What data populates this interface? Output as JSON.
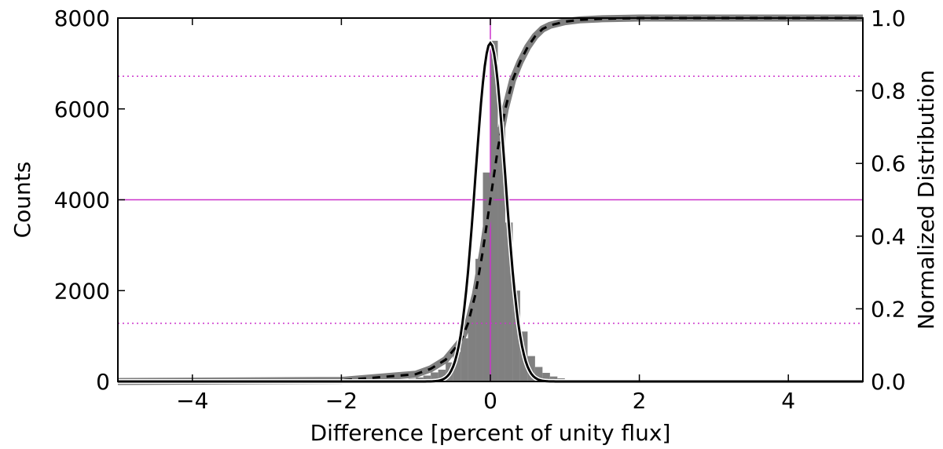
{
  "chart_data": {
    "type": "histogram",
    "xlabel": "Difference [percent of unity flux]",
    "ylabel": "Counts",
    "ylabel_right": "Normalized Distribution",
    "xlim": [
      -5,
      5
    ],
    "ylim": [
      0,
      8000
    ],
    "ylim_right": [
      0,
      1.0
    ],
    "x_ticks": [
      -4,
      -2,
      0,
      2,
      4
    ],
    "x_tick_labels": [
      "−4",
      "−2",
      "0",
      "2",
      "4"
    ],
    "y_ticks": [
      0,
      2000,
      4000,
      6000,
      8000
    ],
    "y_tick_labels": [
      "0",
      "2000",
      "4000",
      "6000",
      "8000"
    ],
    "y_right_ticks": [
      0,
      0.2,
      0.4,
      0.6,
      0.8,
      1.0
    ],
    "y_right_tick_labels": [
      "0.0",
      "0.2",
      "0.4",
      "0.6",
      "0.8",
      "1.0"
    ],
    "grid": false,
    "histogram": {
      "bin_width": 0.1,
      "bins": [
        {
          "x0": -1.2,
          "count": 30
        },
        {
          "x0": -1.1,
          "count": 60
        },
        {
          "x0": -1.0,
          "count": 90
        },
        {
          "x0": -0.9,
          "count": 130
        },
        {
          "x0": -0.8,
          "count": 200
        },
        {
          "x0": -0.7,
          "count": 260
        },
        {
          "x0": -0.6,
          "count": 420
        },
        {
          "x0": -0.5,
          "count": 650
        },
        {
          "x0": -0.4,
          "count": 950
        },
        {
          "x0": -0.3,
          "count": 1600
        },
        {
          "x0": -0.2,
          "count": 2700
        },
        {
          "x0": -0.1,
          "count": 4600
        },
        {
          "x0": 0.0,
          "count": 7500
        },
        {
          "x0": 0.1,
          "count": 5600
        },
        {
          "x0": 0.2,
          "count": 3500
        },
        {
          "x0": 0.3,
          "count": 2000
        },
        {
          "x0": 0.4,
          "count": 1100
        },
        {
          "x0": 0.5,
          "count": 560
        },
        {
          "x0": 0.6,
          "count": 320
        },
        {
          "x0": 0.7,
          "count": 190
        },
        {
          "x0": 0.8,
          "count": 110
        },
        {
          "x0": 0.9,
          "count": 70
        },
        {
          "x0": 1.0,
          "count": 40
        },
        {
          "x0": 1.1,
          "count": 20
        }
      ]
    },
    "gaussian_fit": {
      "amplitude": 7450,
      "mean": 0.0,
      "sigma": 0.2
    },
    "cumulative_distribution": {
      "x": [
        -5.0,
        -2.0,
        -1.0,
        -0.8,
        -0.6,
        -0.4,
        -0.3,
        -0.2,
        -0.1,
        0.0,
        0.1,
        0.2,
        0.3,
        0.4,
        0.5,
        0.6,
        0.7,
        0.8,
        1.0,
        1.2,
        1.5,
        2.0,
        5.0
      ],
      "y": [
        0.0,
        0.003,
        0.02,
        0.035,
        0.06,
        0.11,
        0.16,
        0.24,
        0.36,
        0.5,
        0.64,
        0.75,
        0.83,
        0.88,
        0.92,
        0.95,
        0.97,
        0.98,
        0.99,
        0.995,
        0.998,
        1.0,
        1.0
      ]
    },
    "reference_lines": {
      "vertical_x": 0.0,
      "horizontal_solid_right": 0.5,
      "horizontal_dotted_right": [
        0.16,
        0.84
      ]
    },
    "colors": {
      "histogram": "#808080",
      "fit": "#000000",
      "cumulative": "#808080",
      "cumulative_overlay": "#000000",
      "reference": "#cc33cc"
    }
  }
}
